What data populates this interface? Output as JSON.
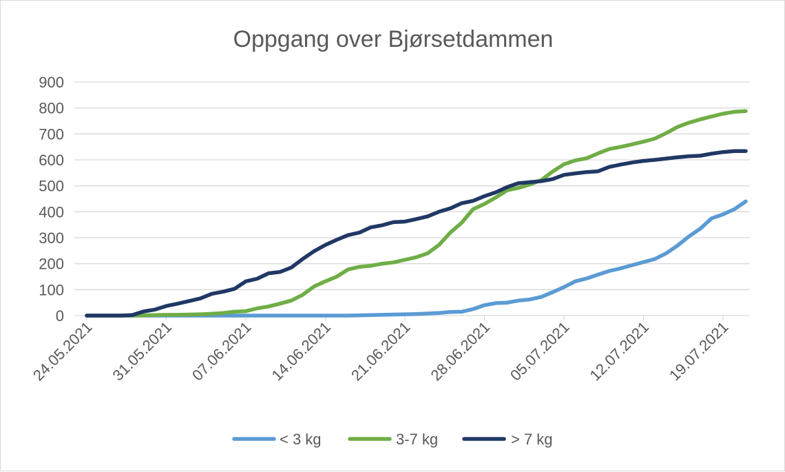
{
  "chart_data": {
    "type": "line",
    "title": "Oppgang over Bjørsetdammen",
    "xlabel": "",
    "ylabel": "",
    "ylim": [
      0,
      900
    ],
    "yticks": [
      0,
      100,
      200,
      300,
      400,
      500,
      600,
      700,
      800,
      900
    ],
    "xlim": [
      "24.05.2021",
      "21.07.2021"
    ],
    "xtick_labels": [
      "24.05.2021",
      "31.05.2021",
      "07.06.2021",
      "14.06.2021",
      "21.06.2021",
      "28.06.2021",
      "05.07.2021",
      "12.07.2021",
      "19.07.2021"
    ],
    "grid": "horizontal",
    "legend_position": "bottom",
    "x": [
      "24.05.2021",
      "25.05.2021",
      "26.05.2021",
      "27.05.2021",
      "28.05.2021",
      "29.05.2021",
      "30.05.2021",
      "31.05.2021",
      "01.06.2021",
      "02.06.2021",
      "03.06.2021",
      "04.06.2021",
      "05.06.2021",
      "06.06.2021",
      "07.06.2021",
      "08.06.2021",
      "09.06.2021",
      "10.06.2021",
      "11.06.2021",
      "12.06.2021",
      "13.06.2021",
      "14.06.2021",
      "15.06.2021",
      "16.06.2021",
      "17.06.2021",
      "18.06.2021",
      "19.06.2021",
      "20.06.2021",
      "21.06.2021",
      "22.06.2021",
      "23.06.2021",
      "24.06.2021",
      "25.06.2021",
      "26.06.2021",
      "27.06.2021",
      "28.06.2021",
      "29.06.2021",
      "30.06.2021",
      "01.07.2021",
      "02.07.2021",
      "03.07.2021",
      "04.07.2021",
      "05.07.2021",
      "06.07.2021",
      "07.07.2021",
      "08.07.2021",
      "09.07.2021",
      "10.07.2021",
      "11.07.2021",
      "12.07.2021",
      "13.07.2021",
      "14.07.2021",
      "15.07.2021",
      "16.07.2021",
      "17.07.2021",
      "18.07.2021",
      "19.07.2021",
      "20.07.2021",
      "21.07.2021"
    ],
    "series": [
      {
        "name": "< 3 kg",
        "color": "#5B9BD5",
        "values": [
          0,
          0,
          0,
          0,
          0,
          0,
          0,
          0,
          0,
          0,
          0,
          0,
          0,
          0,
          0,
          0,
          0,
          0,
          0,
          0,
          0,
          0,
          0,
          0,
          1,
          2,
          3,
          4,
          5,
          6,
          8,
          10,
          14,
          15,
          25,
          40,
          48,
          50,
          58,
          62,
          72,
          90,
          110,
          132,
          143,
          158,
          172,
          182,
          194,
          206,
          218,
          240,
          270,
          305,
          335,
          375,
          390,
          410,
          440
        ]
      },
      {
        "name": "3-7 kg",
        "color": "#70AD47",
        "values": [
          0,
          0,
          0,
          0,
          0,
          1,
          2,
          3,
          3,
          4,
          5,
          7,
          10,
          15,
          17,
          28,
          35,
          46,
          58,
          80,
          112,
          132,
          150,
          178,
          188,
          192,
          200,
          205,
          215,
          225,
          240,
          272,
          320,
          358,
          410,
          430,
          455,
          483,
          492,
          505,
          522,
          555,
          583,
          598,
          606,
          625,
          642,
          650,
          660,
          670,
          682,
          703,
          727,
          743,
          756,
          767,
          778,
          785,
          788
        ]
      },
      {
        "name": "> 7 kg",
        "color": "#203864",
        "values": [
          0,
          0,
          0,
          0,
          2,
          16,
          23,
          37,
          46,
          56,
          66,
          84,
          92,
          103,
          132,
          142,
          163,
          168,
          185,
          218,
          248,
          272,
          292,
          310,
          320,
          340,
          348,
          360,
          362,
          372,
          382,
          400,
          413,
          433,
          442,
          460,
          475,
          495,
          510,
          514,
          518,
          526,
          542,
          548,
          553,
          556,
          573,
          582,
          590,
          596,
          600,
          605,
          610,
          614,
          616,
          624,
          630,
          634,
          634
        ]
      }
    ]
  }
}
